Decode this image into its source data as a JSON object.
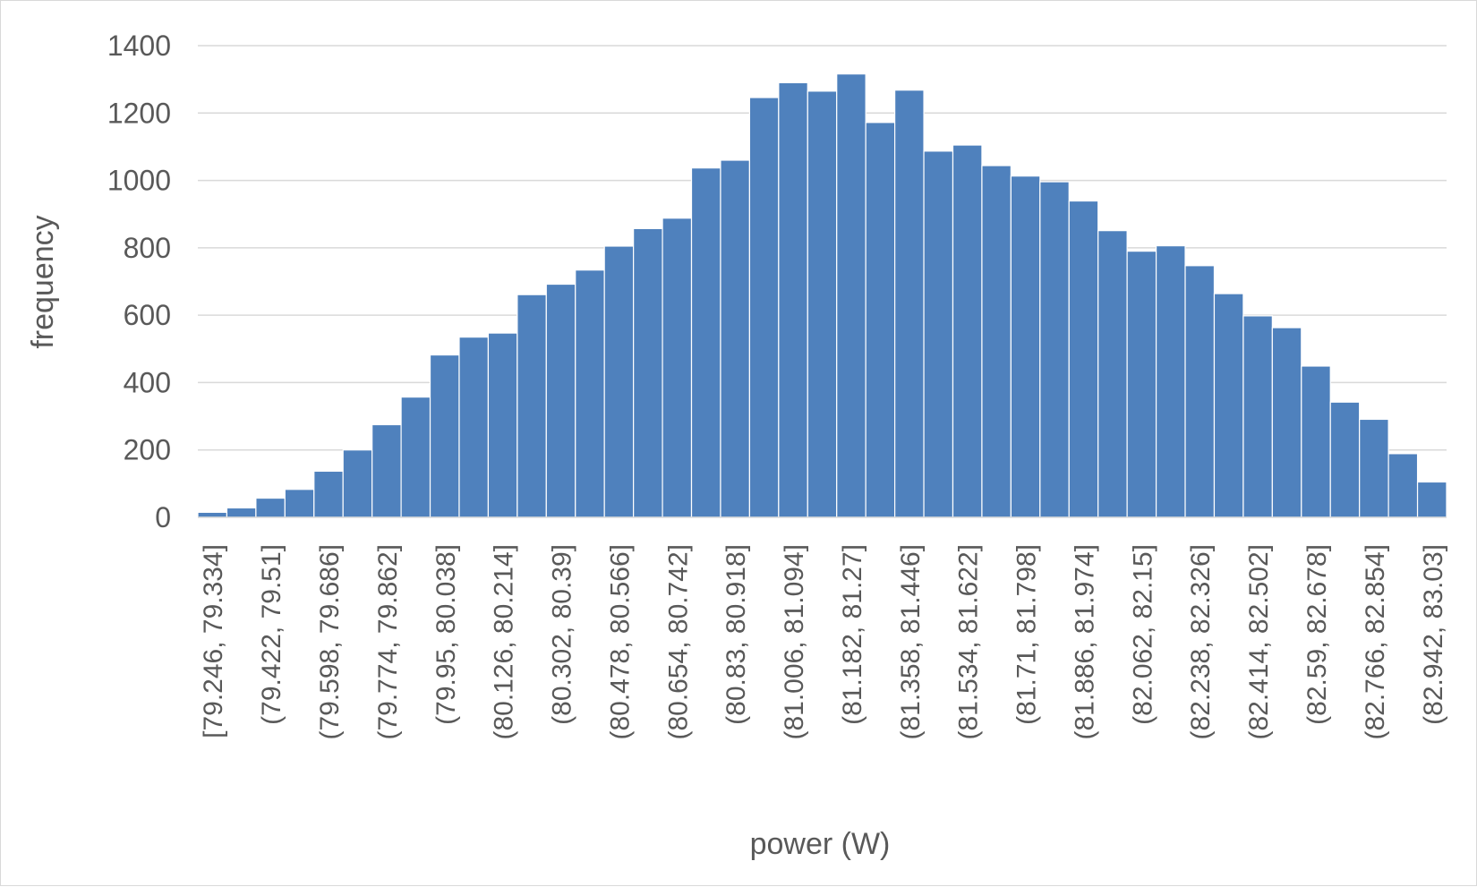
{
  "chart_data": {
    "type": "bar",
    "title": "",
    "xlabel": "power (W)",
    "ylabel": "frequency",
    "ylim": [
      0,
      1400
    ],
    "yticks": [
      0,
      200,
      400,
      600,
      800,
      1000,
      1200,
      1400
    ],
    "grid": true,
    "legend": "none",
    "bar_color": "#4f81bd",
    "bar_edge_color": "#ffffff",
    "grid_color": "#d9d9d9",
    "text_color": "#595959",
    "x_tick_labels": [
      "[79.246, 79.334]",
      "(79.422, 79.51]",
      "(79.598, 79.686]",
      "(79.774, 79.862]",
      "(79.95, 80.038]",
      "(80.126, 80.214]",
      "(80.302, 80.39]",
      "(80.478, 80.566]",
      "(80.654, 80.742]",
      "(80.83, 80.918]",
      "(81.006, 81.094]",
      "(81.182, 81.27]",
      "(81.358, 81.446]",
      "(81.534, 81.622]",
      "(81.71, 81.798]",
      "(81.886, 81.974]",
      "(82.062, 82.15]",
      "(82.238, 82.326]",
      "(82.414, 82.502]",
      "(82.59, 82.678]",
      "(82.766, 82.854]",
      "(82.942, 83.03]"
    ],
    "bin_lower_bounds": [
      79.246,
      79.334,
      79.422,
      79.51,
      79.598,
      79.686,
      79.774,
      79.862,
      79.95,
      80.038,
      80.126,
      80.214,
      80.302,
      80.39,
      80.478,
      80.566,
      80.654,
      80.742,
      80.83,
      80.918,
      81.006,
      81.094,
      81.182,
      81.27,
      81.358,
      81.446,
      81.534,
      81.622,
      81.71,
      81.798,
      81.886,
      81.974,
      82.062,
      82.15,
      82.238,
      82.326,
      82.414,
      82.502,
      82.59,
      82.678,
      82.766,
      82.854,
      82.942
    ],
    "bin_upper_bounds": [
      79.334,
      79.422,
      79.51,
      79.598,
      79.686,
      79.774,
      79.862,
      79.95,
      80.038,
      80.126,
      80.214,
      80.302,
      80.39,
      80.478,
      80.566,
      80.654,
      80.742,
      80.83,
      80.918,
      81.006,
      81.094,
      81.182,
      81.27,
      81.358,
      81.446,
      81.534,
      81.622,
      81.71,
      81.798,
      81.886,
      81.974,
      82.062,
      82.15,
      82.238,
      82.326,
      82.414,
      82.502,
      82.59,
      82.678,
      82.766,
      82.854,
      82.942,
      83.03
    ],
    "values": [
      15,
      28,
      57,
      83,
      137,
      200,
      275,
      357,
      482,
      535,
      547,
      661,
      692,
      734,
      805,
      857,
      888,
      1037,
      1060,
      1246,
      1290,
      1265,
      1316,
      1172,
      1268,
      1087,
      1105,
      1044,
      1013,
      996,
      939,
      851,
      790,
      806,
      747,
      664,
      598,
      563,
      449,
      342,
      291,
      189,
      105
    ]
  }
}
